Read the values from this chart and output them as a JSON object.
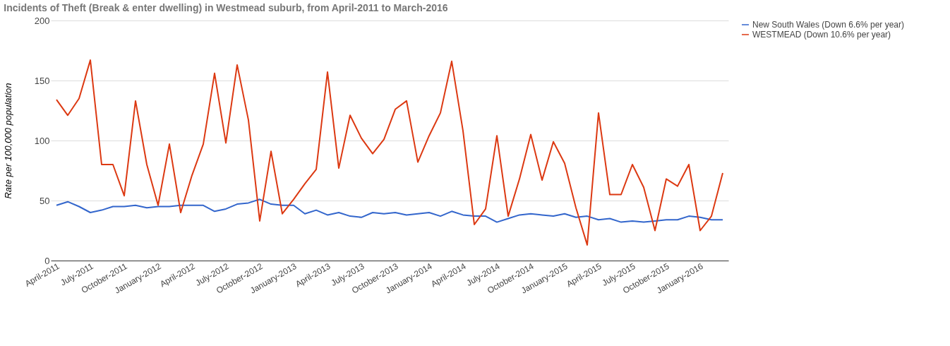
{
  "chart_data": {
    "type": "line",
    "title": "Incidents of Theft (Break & enter dwelling) in Westmead suburb, from April-2011 to March-2016",
    "ylabel": "Rate per 100,000 population",
    "categories": [
      "April-2011",
      null,
      null,
      "July-2011",
      null,
      null,
      "October-2011",
      null,
      null,
      "January-2012",
      null,
      null,
      "April-2012",
      null,
      null,
      "July-2012",
      null,
      null,
      "October-2012",
      null,
      null,
      "January-2013",
      null,
      null,
      "April-2013",
      null,
      null,
      "July-2013",
      null,
      null,
      "October-2013",
      null,
      null,
      "January-2014",
      null,
      null,
      "April-2014",
      null,
      null,
      "July-2014",
      null,
      null,
      "October-2014",
      null,
      null,
      "January-2015",
      null,
      null,
      "April-2015",
      null,
      null,
      "July-2015",
      null,
      null,
      "October-2015",
      null,
      null,
      "January-2016",
      null,
      null
    ],
    "series": [
      {
        "name": "New South Wales (Down 6.6% per year)",
        "color": "#3366cc",
        "values": [
          46,
          49,
          45,
          40,
          42,
          45,
          45,
          46,
          44,
          45,
          45,
          46,
          46,
          46,
          41,
          43,
          47,
          48,
          51,
          47,
          46,
          46,
          39,
          42,
          38,
          40,
          37,
          36,
          40,
          39,
          40,
          38,
          39,
          40,
          37,
          41,
          38,
          37,
          37,
          32,
          35,
          38,
          39,
          38,
          37,
          39,
          36,
          37,
          34,
          35,
          32,
          33,
          32,
          33,
          34,
          34,
          37,
          36,
          34,
          34
        ]
      },
      {
        "name": "WESTMEAD (Down 10.6% per year)",
        "color": "#dc3912",
        "values": [
          134,
          121,
          135,
          167,
          80,
          80,
          54,
          133,
          80,
          46,
          97,
          40,
          71,
          97,
          156,
          98,
          163,
          117,
          33,
          91,
          39,
          51,
          64,
          76,
          157,
          77,
          121,
          102,
          89,
          101,
          126,
          133,
          82,
          104,
          123,
          166,
          108,
          30,
          43,
          104,
          37,
          68,
          105,
          67,
          99,
          81,
          44,
          13,
          123,
          55,
          55,
          80,
          61,
          25,
          68,
          62,
          80,
          25,
          37,
          73
        ]
      }
    ],
    "ylim": [
      0,
      200
    ],
    "yticks": [
      0,
      50,
      100,
      150,
      200
    ],
    "grid": "y",
    "legend": "right",
    "marker": "none",
    "line_style": "solid"
  }
}
